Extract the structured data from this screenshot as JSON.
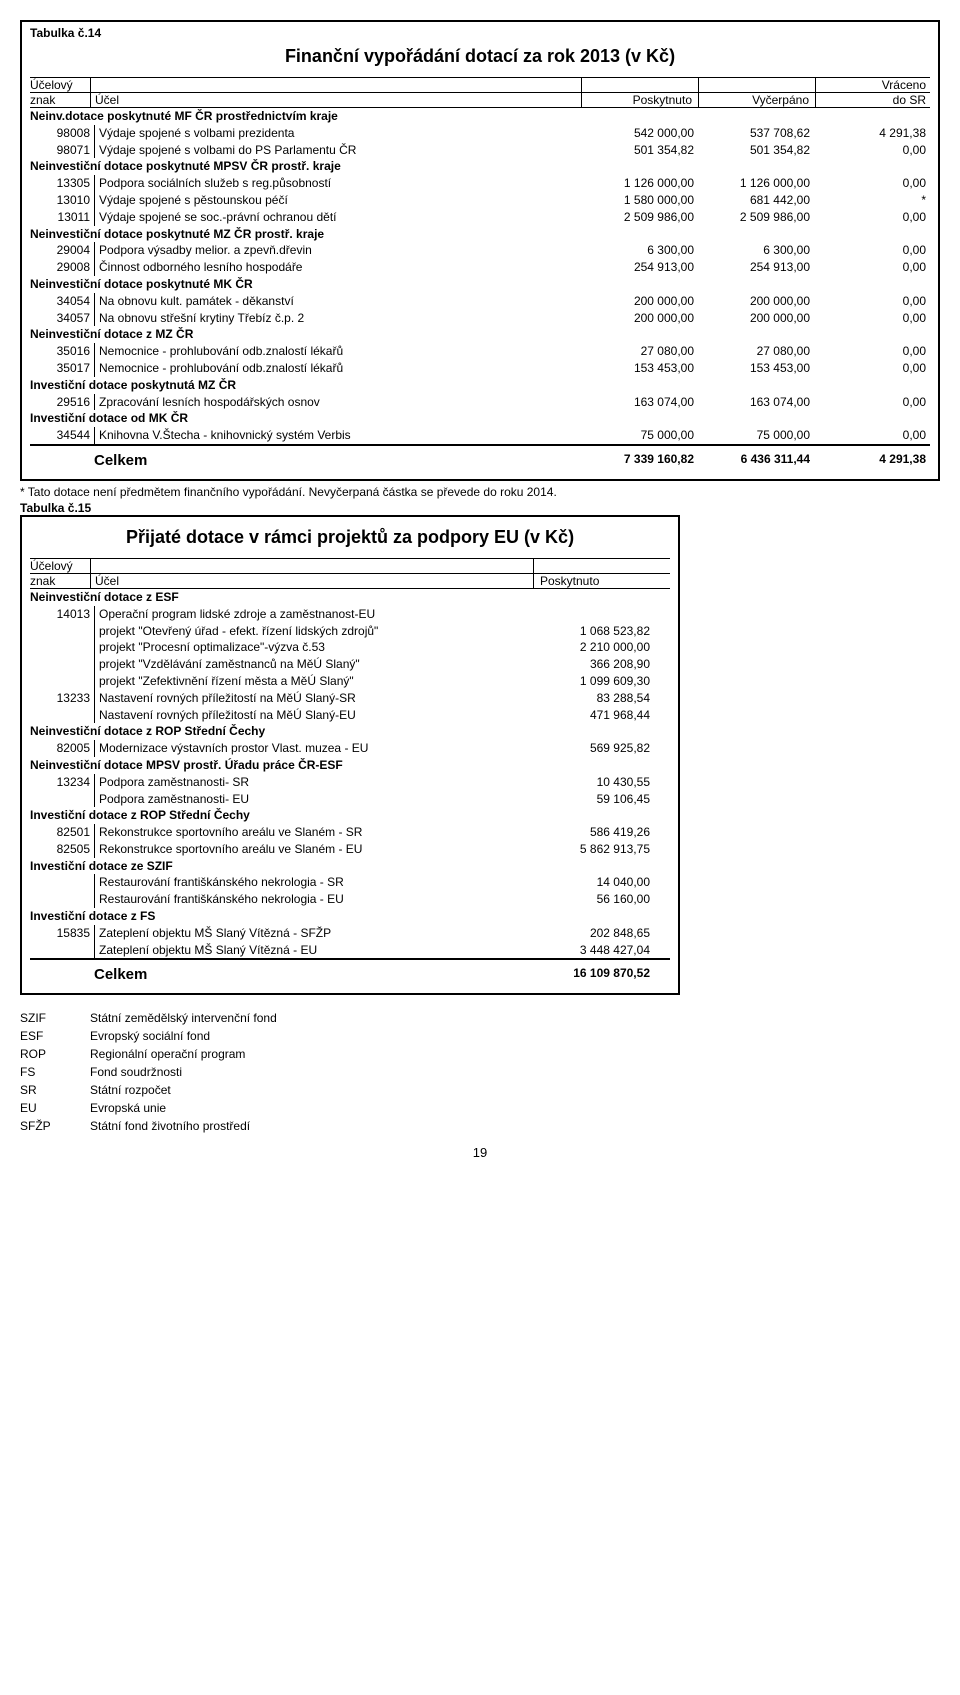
{
  "table14": {
    "number": "Tabulka č.14",
    "title": "Finanční vypořádání dotací za rok 2013 (v Kč)",
    "headers": {
      "ucelovy": "Účelový",
      "znak": "znak",
      "ucel": "Účel",
      "poskytnuto": "Poskytnuto",
      "vycerpano": "Vyčerpáno",
      "vraceno": "Vráceno",
      "do_sr": "do SR"
    },
    "sections": [
      {
        "title": "Neinv.dotace poskytnuté MF ČR prostřednictvím kraje",
        "rows": [
          {
            "znak": "98008",
            "label": "Výdaje spojené s volbami prezidenta",
            "c1": "542 000,00",
            "c2": "537 708,62",
            "c3": "4 291,38"
          },
          {
            "znak": "98071",
            "label": "Výdaje spojené s volbami do PS Parlamentu ČR",
            "c1": "501 354,82",
            "c2": "501 354,82",
            "c3": "0,00"
          }
        ]
      },
      {
        "title": "Neinvestiční dotace poskytnuté MPSV ČR prostř. kraje",
        "rows": [
          {
            "znak": "13305",
            "label": "Podpora sociálních služeb s reg.působností",
            "c1": "1 126 000,00",
            "c2": "1 126 000,00",
            "c3": "0,00"
          },
          {
            "znak": "13010",
            "label": "Výdaje spojené s pěstounskou péčí",
            "c1": "1 580 000,00",
            "c2": "681 442,00",
            "c3": "*"
          },
          {
            "znak": "13011",
            "label": "Výdaje spojené se soc.-právní ochranou dětí",
            "c1": "2 509 986,00",
            "c2": "2 509 986,00",
            "c3": "0,00"
          }
        ]
      },
      {
        "title": "Neinvestiční dotace poskytnuté MZ ČR prostř. kraje",
        "rows": [
          {
            "znak": "29004",
            "label": "Podpora výsadby melior. a zpevň.dřevin",
            "c1": "6 300,00",
            "c2": "6 300,00",
            "c3": "0,00"
          },
          {
            "znak": "29008",
            "label": "Činnost odborného lesního hospodáře",
            "c1": "254 913,00",
            "c2": "254 913,00",
            "c3": "0,00"
          }
        ]
      },
      {
        "title": "Neinvestiční dotace poskytnuté MK ČR",
        "rows": [
          {
            "znak": "34054",
            "label": "Na obnovu kult. památek - děkanství",
            "c1": "200 000,00",
            "c2": "200 000,00",
            "c3": "0,00"
          },
          {
            "znak": "34057",
            "label": "Na obnovu střešní krytiny Třebíz č.p. 2",
            "c1": "200 000,00",
            "c2": "200 000,00",
            "c3": "0,00"
          }
        ]
      },
      {
        "title": "Neinvestiční dotace z MZ ČR",
        "rows": [
          {
            "znak": "35016",
            "label": "Nemocnice - prohlubování odb.znalostí lékařů",
            "c1": "27 080,00",
            "c2": "27 080,00",
            "c3": "0,00"
          },
          {
            "znak": "35017",
            "label": "Nemocnice - prohlubování odb.znalostí lékařů",
            "c1": "153 453,00",
            "c2": "153 453,00",
            "c3": "0,00"
          }
        ]
      },
      {
        "title": "Investiční dotace poskytnutá MZ ČR",
        "rows": [
          {
            "znak": "29516",
            "label": "Zpracování lesních hospodářských osnov",
            "c1": "163 074,00",
            "c2": "163 074,00",
            "c3": "0,00"
          }
        ]
      },
      {
        "title": "Investiční dotace od MK ČR",
        "rows": [
          {
            "znak": "34544",
            "label": "Knihovna V.Štecha - knihovnický systém Verbis",
            "c1": "75 000,00",
            "c2": "75 000,00",
            "c3": "0,00"
          }
        ]
      }
    ],
    "total": {
      "label": "Celkem",
      "c1": "7 339 160,82",
      "c2": "6 436 311,44",
      "c3": "4 291,38"
    }
  },
  "footnote": "*             Tato dotace není předmětem finančního vypořádání. Nevyčerpaná částka se převede do roku 2014.",
  "table15": {
    "number": "Tabulka č.15",
    "title": "Přijaté dotace v rámci projektů za podpory EU (v Kč)",
    "headers": {
      "ucelovy": "Účelový",
      "znak": "znak",
      "ucel": "Účel",
      "poskytnuto": "Poskytnuto"
    },
    "sections": [
      {
        "title": "Neinvestiční dotace z ESF",
        "rows": [
          {
            "znak": "14013",
            "label": "Operační program lidské zdroje a zaměstnanost-EU",
            "c1": ""
          },
          {
            "znak": "",
            "label": "projekt \"Otevřený úřad - efekt. řízení lidských zdrojů\"",
            "c1": "1 068 523,82"
          },
          {
            "znak": "",
            "label": "projekt \"Procesní optimalizace\"-výzva č.53",
            "c1": "2 210 000,00"
          },
          {
            "znak": "",
            "label": "projekt \"Vzdělávání zaměstnanců na MěÚ Slaný\"",
            "c1": "366 208,90"
          },
          {
            "znak": "",
            "label": "projekt \"Zefektivnění řízení města a MěÚ Slaný\"",
            "c1": "1 099 609,30"
          },
          {
            "znak": "13233",
            "label": "Nastavení rovných příležitostí na MěÚ Slaný-SR",
            "c1": "83 288,54"
          },
          {
            "znak": "",
            "label": "Nastavení rovných příležitostí na MěÚ Slaný-EU",
            "c1": "471 968,44"
          }
        ]
      },
      {
        "title": "Neinvestiční dotace z ROP Střední Čechy",
        "rows": [
          {
            "znak": "82005",
            "label": "Modernizace výstavních prostor Vlast. muzea - EU",
            "c1": "569 925,82"
          }
        ]
      },
      {
        "title": "Neinvestiční dotace MPSV prostř. Úřadu práce ČR-ESF",
        "rows": [
          {
            "znak": "13234",
            "label": "Podpora zaměstnanosti- SR",
            "c1": "10 430,55"
          },
          {
            "znak": "",
            "label": "Podpora zaměstnanosti- EU",
            "c1": "59 106,45"
          }
        ]
      },
      {
        "title": "Investiční dotace z ROP Střední Čechy",
        "rows": [
          {
            "znak": "82501",
            "label": "Rekonstrukce sportovního areálu ve Slaném - SR",
            "c1": "586 419,26"
          },
          {
            "znak": "82505",
            "label": "Rekonstrukce sportovního areálu ve Slaném - EU",
            "c1": "5 862 913,75"
          }
        ]
      },
      {
        "title": "Investiční dotace ze SZIF",
        "rows": [
          {
            "znak": "",
            "label": "Restaurování františkánského nekrologia - SR",
            "c1": "14 040,00"
          },
          {
            "znak": "",
            "label": "Restaurování františkánského nekrologia - EU",
            "c1": "56 160,00"
          }
        ]
      },
      {
        "title": "Investiční dotace z FS",
        "rows": [
          {
            "znak": "15835",
            "label": "Zateplení objektu MŠ Slaný Vítězná - SFŽP",
            "c1": "202 848,65"
          },
          {
            "znak": "",
            "label": "Zateplení objektu MŠ Slaný Vítězná - EU",
            "c1": "3 448 427,04"
          }
        ]
      }
    ],
    "total": {
      "label": "Celkem",
      "c1": "16 109 870,52"
    }
  },
  "abbr": [
    {
      "k": "SZIF",
      "v": "Státní zemědělský intervenční fond"
    },
    {
      "k": "ESF",
      "v": "Evropský sociální fond"
    },
    {
      "k": "ROP",
      "v": "Regionální operační program"
    },
    {
      "k": "FS",
      "v": "Fond soudržnosti"
    },
    {
      "k": "SR",
      "v": "Státní rozpočet"
    },
    {
      "k": "EU",
      "v": "Evropská unie"
    },
    {
      "k": "SFŽP",
      "v": "Státní fond životního prostředí"
    }
  ],
  "page": "19"
}
